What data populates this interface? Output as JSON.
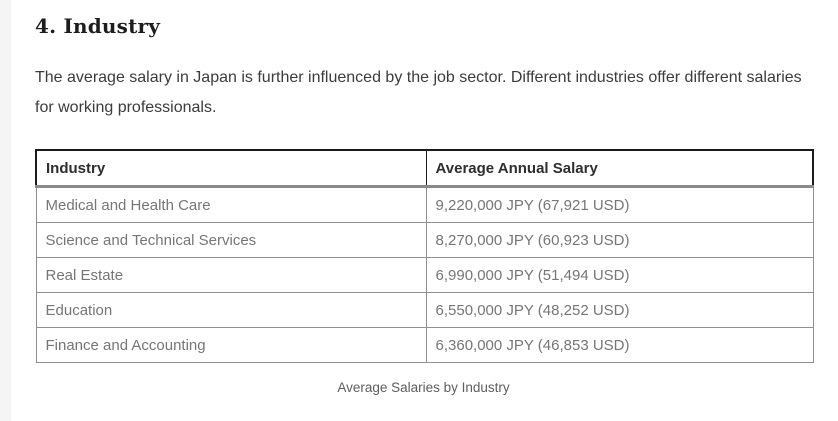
{
  "page": {
    "heading": "4. Industry",
    "paragraph": "The average salary in Japan is further influenced by the job sector. Different industries offer different salaries for working professionals.",
    "caption": "Average Salaries by Industry"
  },
  "table": {
    "columns": [
      "Industry",
      "Average Annual Salary"
    ],
    "rows": [
      [
        "Medical and Health Care",
        "9,220,000 JPY (67,921 USD)"
      ],
      [
        "Science and Technical Services",
        "8,270,000 JPY (60,923 USD)"
      ],
      [
        "Real Estate",
        "6,990,000 JPY (51,494 USD)"
      ],
      [
        "Education",
        "6,550,000 JPY (48,252 USD)"
      ],
      [
        "Finance and Accounting",
        "6,360,000 JPY (46,853 USD)"
      ]
    ]
  },
  "colors": {
    "heading_text": "#1d1d1d",
    "body_text": "#3c3c3c",
    "table_header_text": "#2e2e2e",
    "table_cell_text": "#767676",
    "caption_text": "#5e5e5e",
    "header_border": "#1b1b1b",
    "header_separator": "#8a8a8a",
    "cell_border": "#909090",
    "left_strip": "#f5f5f5",
    "page_bg": "#ffffff"
  }
}
